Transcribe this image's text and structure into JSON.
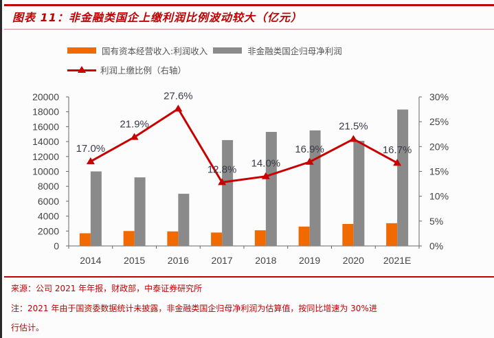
{
  "title": "图表 11：非金融类国企上缴利润比例波动较大（亿元）",
  "legend": {
    "series1": "国有资本经营收入:利润收入",
    "series2": "非金融类国企归母净利润",
    "series3": "利润上缴比例（右轴）"
  },
  "source": "来源：公司 2021 年年报，财政部，中泰证券研究所",
  "note_line1": "注：2021 年由于国资委数据统计未披露，非金融类国企归母净利润为估算值，按同比增速为 30%进",
  "note_line2": "行估计。",
  "colors": {
    "title": "#c00000",
    "orange": "#f06a00",
    "gray": "#8a8a8a",
    "line": "#c80000",
    "axis": "#555555"
  },
  "chart_data": {
    "type": "bar",
    "title": "非金融类国企上缴利润比例波动较大（亿元）",
    "categories": [
      "2014",
      "2015",
      "2016",
      "2017",
      "2018",
      "2019",
      "2020",
      "2021E"
    ],
    "series": [
      {
        "name": "国有资本经营收入:利润收入",
        "type": "bar",
        "axis": "left",
        "values": [
          1700,
          2000,
          1950,
          1800,
          2100,
          2600,
          2950,
          3050
        ]
      },
      {
        "name": "非金融类国企归母净利润",
        "type": "bar",
        "axis": "left",
        "values": [
          10000,
          9200,
          7000,
          14200,
          15300,
          15500,
          14100,
          18300
        ]
      },
      {
        "name": "利润上缴比例（右轴）",
        "type": "line",
        "axis": "right",
        "values": [
          17.0,
          21.9,
          27.6,
          12.8,
          14.0,
          16.9,
          21.5,
          16.7
        ],
        "labels": [
          "17.0%",
          "21.9%",
          "27.6%",
          "12.8%",
          "14.0%",
          "16.9%",
          "21.5%",
          "16.7%"
        ]
      }
    ],
    "y_left": {
      "min": 0,
      "max": 20000,
      "step": 2000,
      "ticks": [
        "0",
        "2000",
        "4000",
        "6000",
        "8000",
        "10000",
        "12000",
        "14000",
        "16000",
        "18000",
        "20000"
      ]
    },
    "y_right": {
      "min": 0,
      "max": 30,
      "step": 5,
      "ticks": [
        "0%",
        "5%",
        "10%",
        "15%",
        "20%",
        "25%",
        "30%"
      ]
    },
    "xlabel": "",
    "ylabel": "",
    "grid": false,
    "legend_position": "top-left"
  }
}
